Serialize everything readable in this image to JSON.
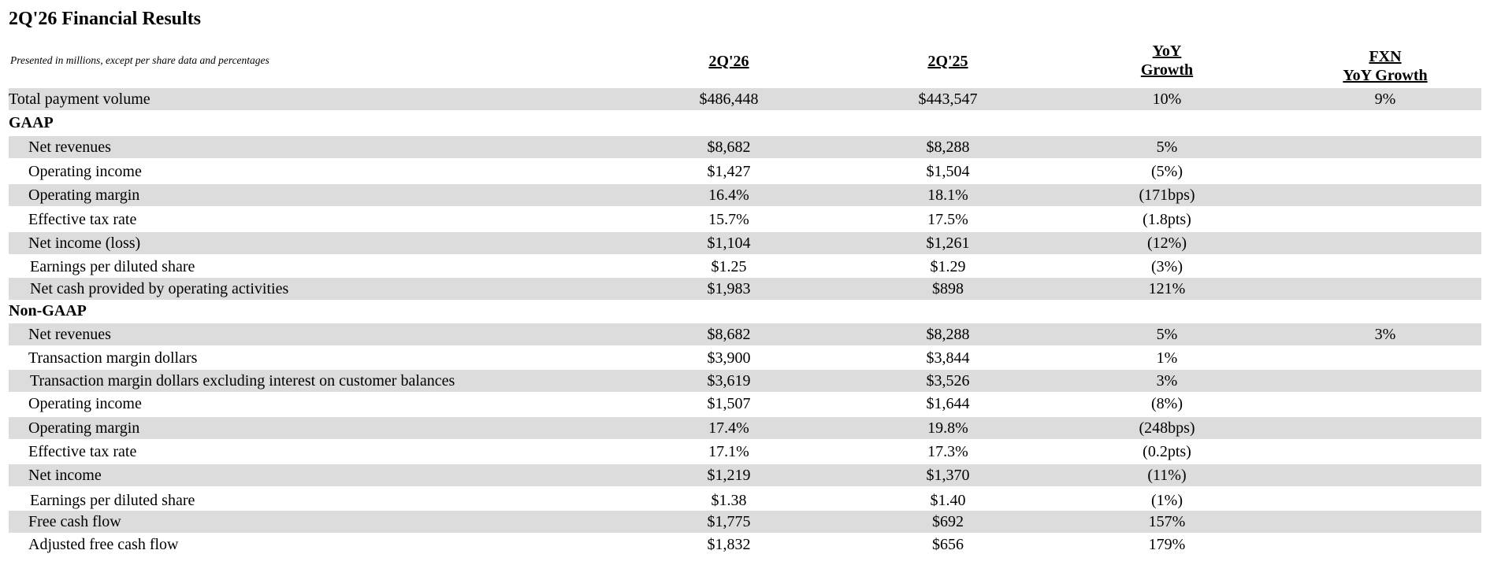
{
  "title": "2Q'26 Financial Results",
  "subtitle": "Presented in millions, except per share data and percentages",
  "columns": {
    "c1": "2Q'26",
    "c2": "2Q'25",
    "c3": {
      "line1": "YoY",
      "line2": "Growth"
    },
    "c4": {
      "line1": "FXN",
      "line2": "YoY Growth"
    }
  },
  "rows": [
    {
      "label": "Total payment volume",
      "c1": "$486,448",
      "c2": "$443,547",
      "c3": "10%",
      "c4": "9%"
    },
    {
      "label": "GAAP"
    },
    {
      "label": "Net revenues",
      "c1": "$8,682",
      "c2": "$8,288",
      "c3": "5%",
      "c4": ""
    },
    {
      "label": "Operating income",
      "c1": "$1,427",
      "c2": "$1,504",
      "c3": "(5%)",
      "c4": ""
    },
    {
      "label": "Operating margin",
      "c1": "16.4%",
      "c2": "18.1%",
      "c3": "(171bps)",
      "c4": ""
    },
    {
      "label": "Effective tax rate",
      "c1": "15.7%",
      "c2": "17.5%",
      "c3": "(1.8pts)",
      "c4": ""
    },
    {
      "label": "Net income (loss)",
      "c1": "$1,104",
      "c2": "$1,261",
      "c3": "(12%)",
      "c4": ""
    },
    {
      "label": "Earnings per diluted share",
      "c1": "$1.25",
      "c2": "$1.29",
      "c3": "(3%)",
      "c4": ""
    },
    {
      "label": "Net cash provided by operating activities",
      "c1": "$1,983",
      "c2": "$898",
      "c3": "121%",
      "c4": ""
    },
    {
      "label": "Non-GAAP"
    },
    {
      "label": "Net revenues",
      "c1": "$8,682",
      "c2": "$8,288",
      "c3": "5%",
      "c4": "3%"
    },
    {
      "label": "Transaction margin dollars",
      "c1": "$3,900",
      "c2": "$3,844",
      "c3": "1%",
      "c4": ""
    },
    {
      "label": "Transaction margin dollars excluding interest on customer balances",
      "c1": "$3,619",
      "c2": "$3,526",
      "c3": "3%",
      "c4": ""
    },
    {
      "label": "Operating income",
      "c1": "$1,507",
      "c2": "$1,644",
      "c3": "(8%)",
      "c4": ""
    },
    {
      "label": "Operating margin",
      "c1": "17.4%",
      "c2": "19.8%",
      "c3": "(248bps)",
      "c4": ""
    },
    {
      "label": "Effective tax rate",
      "c1": "17.1%",
      "c2": "17.3%",
      "c3": "(0.2pts)",
      "c4": ""
    },
    {
      "label": "Net income",
      "c1": "$1,219",
      "c2": "$1,370",
      "c3": "(11%)",
      "c4": ""
    },
    {
      "label": "Earnings per diluted share",
      "c1": "$1.38",
      "c2": "$1.40",
      "c3": "(1%)",
      "c4": ""
    },
    {
      "label": "Free cash flow",
      "c1": "$1,775",
      "c2": "$692",
      "c3": "157%",
      "c4": ""
    },
    {
      "label": "Adjusted free cash flow",
      "c1": "$1,832",
      "c2": "$656",
      "c3": "179%",
      "c4": ""
    }
  ]
}
